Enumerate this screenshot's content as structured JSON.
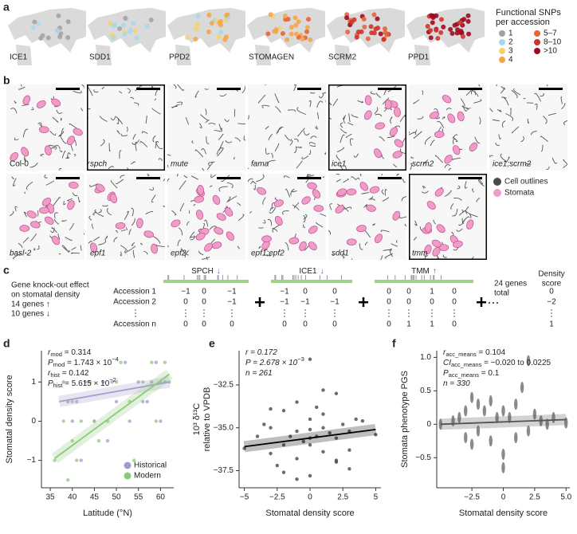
{
  "panel_labels": [
    "a",
    "b",
    "c",
    "d",
    "e",
    "f"
  ],
  "maps": {
    "genes": [
      "ICE1",
      "SDD1",
      "PPD2",
      "STOMAGEN",
      "SCRM2",
      "PPD1"
    ],
    "legend": {
      "title": [
        "Functional SNPs",
        "per accession"
      ],
      "items": [
        {
          "label": "1",
          "color": "#a3a3a3"
        },
        {
          "label": "2",
          "color": "#a8d8ea"
        },
        {
          "label": "3",
          "color": "#f6d36b"
        },
        {
          "label": "4",
          "color": "#f4a64a"
        },
        {
          "label": "5–7",
          "color": "#e8633b"
        },
        {
          "label": "8–10",
          "color": "#cf342b"
        },
        {
          "label": ">10",
          "color": "#9e0a22"
        }
      ]
    }
  },
  "micrographs": {
    "genotypes": [
      "Col-0",
      "spch",
      "mute",
      "fama",
      "ice1",
      "scrm2",
      "ice1;scrm2",
      "basl-2",
      "epf1",
      "epf2",
      "epf1;epf2",
      "sdd1",
      "tmm"
    ],
    "legend": [
      {
        "label": "Cell outlines",
        "color": "#4a4a4a"
      },
      {
        "label": "Stomata",
        "color": "#ee9cc8"
      }
    ]
  },
  "scheme": {
    "title": [
      "Gene knock-out effect",
      "on stomatal density"
    ],
    "up": "14 genes ↑",
    "down": "10 genes ↓",
    "genes": [
      {
        "name": "SPCH",
        "arrow": "↓"
      },
      {
        "name": "ICE1",
        "arrow": "↓"
      },
      {
        "name": "TMM",
        "arrow": "↑"
      }
    ],
    "accessions": [
      "Accession 1",
      "Accession 2",
      "Accession n"
    ],
    "effects": [
      [
        [
          "−1",
          "0",
          "−1"
        ],
        [
          "−1",
          "0",
          "0"
        ],
        [
          "0",
          "0",
          "1",
          "0"
        ]
      ],
      [
        [
          "0",
          "0",
          "−1"
        ],
        [
          "−1",
          "−1",
          "−1"
        ],
        [
          "0",
          "0",
          "0",
          "0"
        ]
      ],
      [
        [
          "0",
          "0",
          "0"
        ],
        [
          "0",
          "0",
          "0"
        ],
        [
          "0",
          "1",
          "1",
          "0"
        ]
      ]
    ],
    "total": [
      "24 genes",
      "total"
    ],
    "score_header": [
      "Density",
      "score"
    ],
    "scores": [
      "0",
      "−2",
      "1"
    ]
  },
  "chart_data": [
    {
      "type": "scatter",
      "xlabel": "Latitude (°N)",
      "ylabel": "Stomatal density score",
      "xlim": [
        33,
        63
      ],
      "xticks": [
        35,
        40,
        45,
        50,
        55,
        60
      ],
      "ylim": [
        -1.7,
        1.8
      ],
      "yticks": [
        {
          "value": -1,
          "label": "−1"
        },
        0,
        1
      ],
      "marker": "dot",
      "legend": "lower right",
      "annotations": [
        [
          {
            "t": "r"
          },
          {
            "sub": "mod"
          },
          {
            "t": " = 0.314"
          }
        ],
        [
          {
            "t": "P"
          },
          {
            "sub": "mod"
          },
          {
            "t": " = 1.743 × 10"
          },
          {
            "sup": "−4"
          }
        ],
        [
          {
            "t": "r"
          },
          {
            "sub": "hist"
          },
          {
            "t": " = 0.142"
          }
        ],
        [
          {
            "t": "P"
          },
          {
            "sub": "hist"
          },
          {
            "t": " = 5.615 × 10"
          },
          {
            "sup": "−2"
          }
        ]
      ],
      "series": [
        {
          "name": "Historical",
          "color": "#a59ccf",
          "x": [
            38,
            40,
            41,
            43,
            45,
            47,
            48,
            50,
            52,
            53,
            55,
            57,
            58,
            59,
            60,
            61,
            42,
            49,
            56,
            39
          ],
          "values": [
            1,
            0,
            0.5,
            1,
            0,
            1,
            -0.5,
            0.5,
            1.5,
            0,
            1,
            0.5,
            1,
            1.5,
            0,
            1,
            -1,
            1,
            0.5,
            0.5
          ]
        },
        {
          "name": "Modern",
          "color": "#8cc97a",
          "x": [
            36,
            38,
            39,
            40,
            41,
            42,
            44,
            46,
            48,
            50,
            51,
            53,
            54,
            56,
            58,
            59,
            60,
            61,
            62,
            40,
            45
          ],
          "values": [
            -1,
            0,
            -1.5,
            0.5,
            -1,
            0,
            1,
            -0.5,
            0,
            1,
            1.5,
            0.5,
            -1,
            1,
            1.5,
            0,
            1,
            1.5,
            1,
            -0.5,
            0
          ]
        }
      ],
      "fits": [
        {
          "color": "#a59ccf",
          "x": [
            37,
            62
          ],
          "values": [
            0.5,
            1.0
          ]
        },
        {
          "color": "#8cc97a",
          "x": [
            36,
            62
          ],
          "values": [
            -0.95,
            1.2
          ]
        }
      ]
    },
    {
      "type": "scatter",
      "xlabel": "Stomatal density score",
      "ylabel": [
        "10³ δ¹³C",
        "relative to VPDB"
      ],
      "xlim": [
        -5.4,
        5.4
      ],
      "xticks": [
        {
          "value": -5,
          "label": "−5"
        },
        {
          "value": -2.5,
          "label": "−2.5"
        },
        0,
        2.5,
        5
      ],
      "ylim": [
        -38.5,
        -30.5
      ],
      "yticks": [
        {
          "value": -32.5,
          "label": "−32.5"
        },
        {
          "value": -35,
          "label": "−35.0"
        },
        {
          "value": -37.5,
          "label": "−37.5"
        }
      ],
      "marker": "dot",
      "annotations": [
        [
          {
            "t": "r = 0.172"
          }
        ],
        [
          {
            "t": "P = 2.678 × 10"
          },
          {
            "sup": "−3"
          }
        ],
        [
          {
            "t": "n = 261"
          }
        ]
      ],
      "series": [
        {
          "color": "#3a3a3a",
          "x": [
            -5,
            -4,
            -3.5,
            -3,
            -3,
            -2.5,
            -2,
            -2,
            -1.5,
            -1,
            -1,
            -1,
            -0.5,
            0,
            0,
            0,
            0,
            0.5,
            0.5,
            1,
            1,
            1,
            1.5,
            2,
            2,
            2,
            2.5,
            3,
            3,
            3.5,
            4,
            5,
            -2,
            -1,
            0,
            1,
            2,
            0,
            -3,
            3
          ],
          "values": [
            -36.2,
            -35.5,
            -34.8,
            -36.5,
            -35,
            -37.2,
            -34,
            -36,
            -35.5,
            -33.5,
            -36.8,
            -35.2,
            -35.8,
            -31,
            -34.5,
            -36,
            -37.8,
            -35.5,
            -33.8,
            -34.2,
            -36.4,
            -35,
            -35.3,
            -33,
            -35.6,
            -37,
            -34.8,
            -35.2,
            -36.3,
            -34.5,
            -34.6,
            -35.4,
            -37.6,
            -38,
            -35.6,
            -32.8,
            -36.9,
            -35.1,
            -33.9,
            -37.4
          ]
        }
      ],
      "fits": [
        {
          "color": "#000000",
          "x": [
            -5,
            5
          ],
          "values": [
            -36.1,
            -35.1
          ]
        }
      ]
    },
    {
      "type": "scatter",
      "xlabel": "Stomatal density score",
      "ylabel": "Stomata phenotype PGS",
      "xlim": [
        -5.3,
        5.3
      ],
      "xticks": [
        {
          "value": -2.5,
          "label": "−2.5"
        },
        0,
        2.5,
        {
          "value": 5,
          "label": "5.0"
        }
      ],
      "ylim": [
        -0.95,
        1.1
      ],
      "yticks": [
        {
          "value": -0.5,
          "label": "−0.5"
        },
        0,
        0.5,
        {
          "value": 1,
          "label": "1.0"
        }
      ],
      "marker": "smear",
      "annotations": [
        [
          {
            "t": "r"
          },
          {
            "sub": "acc_means"
          },
          {
            "t": " = 0.104"
          }
        ],
        [
          {
            "t": "CI"
          },
          {
            "sub": "acc_means"
          },
          {
            "t": " = −0.020 to 0.0225"
          }
        ],
        [
          {
            "t": "P"
          },
          {
            "sub": "acc_means"
          },
          {
            "t": " = 0.1"
          }
        ],
        [
          {
            "t": "n = 330"
          }
        ]
      ],
      "series": [
        {
          "color": "#2a2a2a",
          "x": [
            -5,
            -4,
            -3.5,
            -3,
            -3,
            -2.5,
            -2.5,
            -2,
            -2,
            -1.5,
            -1,
            -1,
            -0.5,
            0,
            0,
            0,
            0.5,
            1,
            1,
            1.5,
            2,
            2,
            2.5,
            3,
            3.5,
            4,
            5
          ],
          "values": [
            0,
            0.05,
            0.1,
            0.2,
            -0.2,
            0.4,
            -0.3,
            0.3,
            -0.1,
            0.2,
            0.35,
            -0.25,
            0.1,
            -0.45,
            -0.65,
            0.2,
            0.1,
            0.3,
            -0.2,
            0.55,
            0.95,
            -0.1,
            0.15,
            0.05,
            0,
            0.1,
            0.02
          ]
        }
      ],
      "fits": [
        {
          "color": "#555555",
          "x": [
            -5,
            5
          ],
          "values": [
            0,
            0.07
          ]
        }
      ]
    }
  ]
}
